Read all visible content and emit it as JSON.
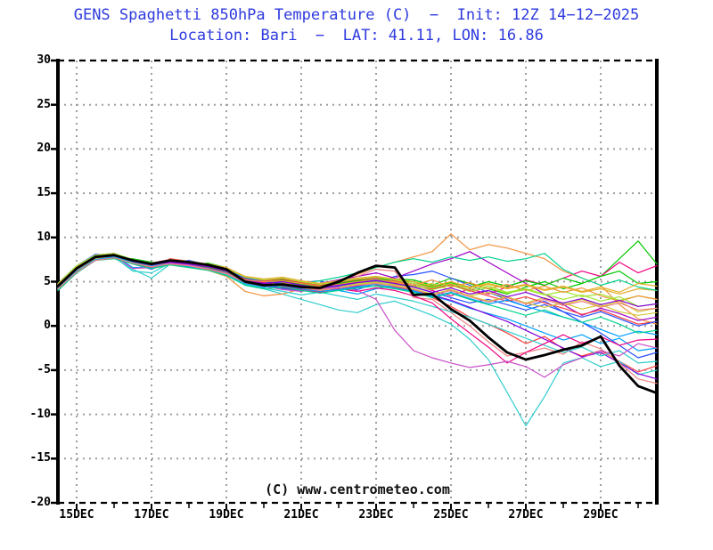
{
  "title": {
    "line1": "GENS Spaghetti 850hPa Temperature (C)  −  Init: 12Z 14−12−2025",
    "line2": "Location: Bari  −  LAT: 41.11, LON: 16.86",
    "color": "#2e3ade"
  },
  "watermark": "(C) www.centrometeo.com",
  "chart_data": {
    "type": "line",
    "subtype": "ensemble-spaghetti",
    "title": "GENS Spaghetti 850hPa Temperature (C)",
    "init": "12Z 14-12-2025",
    "location": "Bari",
    "lat": "41.11",
    "lon": "16.86",
    "xlabel": "",
    "ylabel": "",
    "ylim": [
      -20,
      30
    ],
    "ytick_step": 5,
    "x_start_day": 14.5,
    "x_end_day": 30.5,
    "x_step_days": 0.5,
    "grid": "dotted-gray",
    "grid_color": "#9e9e9e",
    "axis_color": "#000000",
    "yticks": [
      {
        "v": 30,
        "label": "30"
      },
      {
        "v": 25,
        "label": "25"
      },
      {
        "v": 20,
        "label": "20"
      },
      {
        "v": 15,
        "label": "15"
      },
      {
        "v": 10,
        "label": "10"
      },
      {
        "v": 5,
        "label": "5"
      },
      {
        "v": 0,
        "label": "0"
      },
      {
        "v": -5,
        "label": "-5"
      },
      {
        "v": -10,
        "label": "-10"
      },
      {
        "v": -15,
        "label": "-15"
      },
      {
        "v": -20,
        "label": "-20"
      }
    ],
    "xticks_major": [
      {
        "day": 15,
        "label": "15DEC"
      },
      {
        "day": 17,
        "label": "17DEC"
      },
      {
        "day": 19,
        "label": "19DEC"
      },
      {
        "day": 21,
        "label": "21DEC"
      },
      {
        "day": 23,
        "label": "23DEC"
      },
      {
        "day": 25,
        "label": "25DEC"
      },
      {
        "day": 27,
        "label": "27DEC"
      },
      {
        "day": 29,
        "label": "29DEC"
      }
    ],
    "xticks_minor_days": [
      16,
      18,
      20,
      22,
      24,
      26,
      28,
      30
    ],
    "series": [
      {
        "name": "p01",
        "color": "#fa3c3c",
        "width": 1.2,
        "values": [
          4.6,
          6.6,
          8.0,
          8.2,
          7.1,
          6.6,
          7.6,
          7.3,
          6.5,
          6.0,
          4.8,
          4.4,
          4.9,
          4.2,
          4.0,
          4.9,
          5.3,
          4.6,
          4.4,
          4.0,
          3.2,
          2.2,
          1.0,
          0.2,
          -0.8,
          -2.0,
          -1.2,
          -2.6,
          -3.4,
          -2.8,
          -4.0,
          -5.2,
          -4.5
        ]
      },
      {
        "name": "p02",
        "color": "#00c800",
        "width": 1.2,
        "values": [
          4.1,
          6.2,
          7.5,
          7.7,
          7.6,
          7.2,
          7.0,
          6.8,
          7.1,
          6.6,
          5.4,
          5.0,
          5.2,
          4.8,
          4.6,
          4.3,
          4.7,
          5.2,
          5.3,
          5.2,
          4.6,
          5.4,
          4.8,
          4.2,
          3.6,
          4.4,
          5.0,
          4.2,
          4.8,
          5.6,
          7.6,
          9.6,
          7.0
        ]
      },
      {
        "name": "p03",
        "color": "#2850ff",
        "width": 1.2,
        "values": [
          4.8,
          6.8,
          8.1,
          8.0,
          7.0,
          6.4,
          7.2,
          7.4,
          6.9,
          6.5,
          5.5,
          5.2,
          4.6,
          4.9,
          5.1,
          4.4,
          4.1,
          4.8,
          5.6,
          5.8,
          6.2,
          5.4,
          4.6,
          3.8,
          3.0,
          2.2,
          2.8,
          1.6,
          0.4,
          -0.8,
          -2.2,
          -3.6,
          -3.0
        ]
      },
      {
        "name": "p04",
        "color": "#30cdcd",
        "width": 1.2,
        "values": [
          4.4,
          6.3,
          7.6,
          7.8,
          6.2,
          6.0,
          7.1,
          6.9,
          6.6,
          5.9,
          4.6,
          4.2,
          3.6,
          3.0,
          2.4,
          1.8,
          1.5,
          2.4,
          2.8,
          2.0,
          1.2,
          0.2,
          -1.5,
          -3.8,
          -7.5,
          -11.3,
          -8.0,
          -4.2,
          -3.6,
          -4.6,
          -4.0,
          -5.5,
          -5.0
        ]
      },
      {
        "name": "p05",
        "color": "#f00082",
        "width": 1.2,
        "values": [
          4.0,
          6.0,
          7.4,
          7.8,
          7.4,
          7.1,
          7.5,
          7.0,
          6.4,
          6.1,
          5.2,
          4.9,
          5.1,
          4.7,
          4.4,
          4.8,
          5.1,
          5.4,
          5.0,
          4.6,
          4.0,
          3.4,
          4.2,
          3.6,
          4.4,
          5.2,
          4.6,
          5.4,
          6.2,
          5.6,
          7.2,
          6.0,
          6.8
        ]
      },
      {
        "name": "p06",
        "color": "#d2c832",
        "width": 1.2,
        "values": [
          4.5,
          6.5,
          7.8,
          8.0,
          7.2,
          6.8,
          7.2,
          7.0,
          6.7,
          6.2,
          5.0,
          4.8,
          4.4,
          4.6,
          4.2,
          4.5,
          4.8,
          5.1,
          4.7,
          4.4,
          4.8,
          4.0,
          3.4,
          3.8,
          3.2,
          2.6,
          3.2,
          2.4,
          3.0,
          2.2,
          2.8,
          1.6,
          2.0
        ]
      },
      {
        "name": "p07",
        "color": "#f0913c",
        "width": 1.2,
        "values": [
          4.2,
          6.1,
          7.5,
          7.7,
          7.0,
          6.5,
          6.9,
          6.6,
          6.3,
          5.6,
          3.9,
          3.4,
          3.6,
          4.2,
          4.8,
          5.2,
          5.8,
          6.6,
          7.2,
          7.8,
          8.4,
          10.4,
          8.6,
          9.2,
          8.8,
          8.2,
          7.6,
          6.2,
          5.4,
          4.6,
          2.4,
          0.8,
          0.2
        ]
      },
      {
        "name": "p08",
        "color": "#a000c8",
        "width": 1.2,
        "values": [
          4.7,
          6.7,
          7.9,
          8.1,
          7.3,
          6.9,
          7.4,
          7.2,
          6.6,
          6.4,
          5.3,
          5.0,
          4.7,
          4.4,
          4.8,
          5.2,
          5.6,
          6.0,
          5.4,
          6.2,
          7.0,
          7.6,
          8.4,
          7.2,
          6.0,
          4.8,
          3.6,
          2.4,
          1.2,
          2.0,
          1.4,
          0.6,
          1.0
        ]
      },
      {
        "name": "p09",
        "color": "#a0e632",
        "width": 1.2,
        "values": [
          4.3,
          6.4,
          7.7,
          7.9,
          7.5,
          7.0,
          7.2,
          7.1,
          6.9,
          6.3,
          5.2,
          4.9,
          5.0,
          4.6,
          4.3,
          4.4,
          4.7,
          5.0,
          4.8,
          4.5,
          4.1,
          4.6,
          3.9,
          4.3,
          3.7,
          4.1,
          3.5,
          3.9,
          3.3,
          3.6,
          2.9,
          3.4,
          3.0
        ]
      },
      {
        "name": "p10",
        "color": "#00a0ff",
        "width": 1.2,
        "values": [
          4.6,
          6.5,
          7.8,
          8.0,
          6.6,
          6.6,
          7.0,
          6.8,
          6.5,
          6.0,
          4.9,
          4.6,
          4.2,
          3.9,
          4.3,
          4.0,
          3.6,
          4.2,
          4.6,
          4.0,
          3.4,
          2.8,
          2.0,
          1.4,
          0.8,
          0.0,
          -0.8,
          -1.6,
          -1.0,
          -2.0,
          -1.4,
          -2.8,
          -2.5
        ]
      },
      {
        "name": "p11",
        "color": "#e6af2d",
        "width": 1.2,
        "values": [
          4.4,
          6.4,
          7.6,
          7.8,
          7.3,
          6.8,
          7.3,
          7.0,
          6.8,
          6.2,
          5.1,
          4.8,
          4.9,
          4.5,
          4.2,
          4.6,
          5.0,
          5.2,
          5.0,
          4.8,
          4.4,
          4.9,
          4.3,
          4.7,
          4.2,
          4.6,
          4.0,
          4.4,
          3.8,
          4.2,
          3.6,
          4.2,
          4.0
        ]
      },
      {
        "name": "p12",
        "color": "#00d28c",
        "width": 1.2,
        "values": [
          4.2,
          6.2,
          7.6,
          7.8,
          7.4,
          7.1,
          7.1,
          6.9,
          6.7,
          6.1,
          5.0,
          4.7,
          4.5,
          4.8,
          5.1,
          5.5,
          6.0,
          6.6,
          7.2,
          7.6,
          7.2,
          7.8,
          7.4,
          7.8,
          7.3,
          7.6,
          8.2,
          6.4,
          5.4,
          4.6,
          5.2,
          4.4,
          4.0
        ]
      },
      {
        "name": "p13",
        "color": "#8200dc",
        "width": 1.2,
        "values": [
          4.5,
          6.6,
          7.9,
          8.1,
          7.2,
          6.7,
          7.2,
          7.0,
          6.6,
          6.1,
          5.0,
          4.7,
          4.3,
          4.0,
          4.4,
          4.1,
          4.5,
          4.9,
          4.5,
          4.1,
          3.5,
          2.9,
          2.1,
          1.3,
          0.5,
          -0.5,
          -1.5,
          -2.5,
          -3.5,
          -3.0,
          -4.2,
          -5.4,
          -6.0
        ]
      },
      {
        "name": "p14",
        "color": "#f08080",
        "width": 1.2,
        "values": [
          4.3,
          6.3,
          7.7,
          7.9,
          7.3,
          6.8,
          7.4,
          7.1,
          6.7,
          6.2,
          5.1,
          4.5,
          4.6,
          4.3,
          4.2,
          4.8,
          5.6,
          6.4,
          6.2,
          3.2,
          3.0,
          1.5,
          0.0,
          -1.8,
          -3.4,
          -3.0,
          -2.5,
          -3.2,
          -1.8,
          -2.6,
          -4.2,
          -6.0,
          -6.5
        ]
      },
      {
        "name": "p15",
        "color": "#fa3c3c",
        "width": 1.2,
        "values": [
          4.7,
          6.7,
          8.0,
          8.2,
          7.4,
          7.0,
          7.5,
          7.2,
          6.9,
          6.4,
          5.3,
          5.1,
          5.3,
          4.9,
          4.6,
          4.9,
          5.2,
          5.5,
          5.1,
          4.8,
          4.2,
          4.7,
          4.0,
          3.4,
          2.8,
          3.3,
          2.6,
          2.0,
          1.3,
          1.8,
          1.0,
          0.2,
          0.5
        ]
      },
      {
        "name": "p16",
        "color": "#00c800",
        "width": 1.2,
        "values": [
          4.4,
          6.5,
          7.8,
          8.0,
          7.2,
          6.7,
          7.1,
          6.9,
          6.6,
          6.1,
          5.2,
          4.8,
          5.0,
          4.7,
          4.5,
          4.8,
          5.1,
          5.3,
          5.2,
          5.0,
          4.4,
          4.9,
          4.4,
          5.0,
          4.5,
          5.1,
          4.6,
          5.4,
          4.8,
          5.6,
          6.2,
          4.8,
          5.0
        ]
      },
      {
        "name": "p17",
        "color": "#2850ff",
        "width": 1.2,
        "values": [
          4.5,
          6.4,
          7.7,
          8.0,
          7.5,
          7.1,
          7.3,
          7.0,
          6.8,
          6.3,
          5.4,
          5.0,
          4.8,
          4.4,
          4.1,
          4.5,
          4.9,
          5.2,
          4.8,
          4.4,
          3.8,
          3.2,
          2.6,
          3.0,
          2.4,
          1.8,
          2.4,
          1.6,
          1.0,
          1.6,
          0.8,
          0.0,
          0.5
        ]
      },
      {
        "name": "p18",
        "color": "#30cdcd",
        "width": 1.2,
        "values": [
          4.1,
          6.1,
          7.5,
          7.7,
          6.4,
          5.4,
          7.0,
          6.7,
          6.4,
          5.8,
          4.7,
          4.3,
          3.9,
          3.5,
          3.8,
          3.4,
          3.0,
          3.6,
          3.2,
          2.8,
          2.2,
          1.6,
          1.0,
          0.2,
          -0.6,
          -1.4,
          -2.2,
          -3.0,
          -2.4,
          -3.4,
          -2.8,
          -4.2,
          -4.0
        ]
      },
      {
        "name": "p19",
        "color": "#f00082",
        "width": 1.2,
        "values": [
          4.6,
          6.6,
          7.9,
          8.1,
          7.3,
          6.8,
          7.3,
          7.1,
          6.7,
          6.2,
          5.2,
          4.9,
          4.5,
          4.1,
          3.8,
          4.2,
          3.9,
          4.3,
          4.0,
          3.4,
          2.6,
          0.8,
          -0.8,
          -2.4,
          -4.2,
          -3.0,
          -2.0,
          -1.0,
          -2.0,
          -1.2,
          -2.2,
          -1.6,
          -1.5
        ]
      },
      {
        "name": "p20",
        "color": "#d2c832",
        "width": 1.2,
        "values": [
          4.2,
          6.3,
          7.6,
          7.8,
          7.2,
          6.9,
          7.1,
          6.8,
          6.5,
          6.0,
          5.0,
          4.6,
          4.8,
          4.4,
          4.1,
          4.4,
          4.7,
          4.9,
          4.6,
          4.2,
          3.6,
          4.1,
          3.4,
          2.8,
          3.3,
          2.6,
          2.1,
          2.6,
          1.9,
          2.4,
          1.6,
          1.2,
          1.5
        ]
      },
      {
        "name": "p21",
        "color": "#f0913c",
        "width": 1.2,
        "values": [
          4.6,
          6.7,
          7.9,
          8.1,
          7.4,
          7.0,
          7.4,
          7.1,
          6.8,
          6.3,
          5.2,
          5.0,
          5.1,
          4.8,
          4.5,
          4.7,
          5.0,
          5.3,
          4.9,
          4.6,
          5.2,
          4.4,
          4.9,
          4.2,
          4.7,
          4.0,
          4.5,
          3.8,
          4.3,
          3.4,
          2.8,
          3.4,
          3.0
        ]
      },
      {
        "name": "p22",
        "color": "#c84fc8",
        "width": 1.2,
        "values": [
          4.4,
          6.4,
          7.7,
          7.9,
          6.5,
          6.6,
          7.1,
          6.9,
          6.5,
          6.0,
          4.9,
          4.5,
          4.1,
          3.9,
          4.2,
          4.4,
          4.0,
          3.0,
          -0.5,
          -2.8,
          -3.6,
          -4.2,
          -4.7,
          -4.4,
          -4.0,
          -4.6,
          -5.8,
          -4.4,
          -3.6,
          -2.8,
          -3.4,
          -2.0,
          -2.5
        ]
      },
      {
        "name": "p23",
        "color": "#a0e632",
        "width": 1.2,
        "values": [
          4.8,
          6.8,
          8.0,
          8.2,
          7.5,
          7.1,
          7.4,
          7.2,
          6.9,
          6.5,
          5.5,
          5.2,
          5.4,
          5.0,
          4.7,
          5.0,
          5.3,
          5.5,
          5.2,
          4.8,
          4.3,
          4.8,
          4.1,
          4.5,
          3.8,
          4.2,
          3.6,
          3.0,
          3.5,
          2.8,
          3.3,
          2.2,
          2.5
        ]
      },
      {
        "name": "p24",
        "color": "#00a0ff",
        "width": 1.2,
        "values": [
          4.3,
          6.2,
          7.5,
          7.8,
          7.2,
          6.8,
          7.0,
          6.7,
          6.4,
          5.9,
          4.8,
          4.4,
          4.6,
          4.2,
          3.9,
          4.1,
          4.4,
          4.7,
          4.3,
          3.9,
          3.3,
          3.8,
          3.1,
          2.5,
          2.9,
          2.2,
          1.6,
          1.0,
          0.4,
          -0.4,
          -1.2,
          -0.6,
          -1.0
        ]
      },
      {
        "name": "p25",
        "color": "#e6af2d",
        "width": 1.2,
        "values": [
          4.7,
          6.6,
          7.8,
          8.1,
          7.4,
          7.0,
          7.5,
          7.3,
          7.0,
          6.6,
          5.6,
          5.3,
          5.5,
          5.1,
          4.8,
          5.1,
          5.4,
          5.6,
          5.3,
          5.0,
          4.5,
          5.0,
          4.4,
          4.8,
          4.3,
          4.7,
          4.1,
          4.5,
          3.9,
          4.4,
          3.8,
          4.8,
          4.5
        ]
      },
      {
        "name": "p26",
        "color": "#00d28c",
        "width": 1.2,
        "values": [
          4.0,
          6.0,
          7.4,
          7.6,
          7.0,
          6.5,
          6.9,
          6.6,
          6.3,
          5.7,
          4.6,
          4.2,
          4.4,
          4.0,
          3.7,
          4.0,
          4.3,
          4.5,
          4.2,
          3.8,
          3.2,
          3.7,
          3.0,
          2.4,
          1.8,
          1.2,
          1.8,
          1.0,
          0.4,
          1.0,
          0.2,
          -0.8,
          -0.5
        ]
      },
      {
        "name": "p27",
        "color": "#8200dc",
        "width": 1.2,
        "values": [
          4.6,
          6.5,
          7.8,
          8.0,
          7.3,
          6.9,
          7.2,
          7.0,
          6.7,
          6.2,
          5.1,
          4.8,
          5.0,
          4.6,
          4.3,
          4.6,
          4.9,
          5.1,
          4.8,
          4.4,
          3.8,
          4.3,
          3.6,
          4.0,
          3.3,
          3.8,
          3.1,
          2.6,
          3.1,
          2.4,
          2.9,
          2.2,
          2.5
        ]
      },
      {
        "name": "p28",
        "color": "#f08080",
        "width": 1.2,
        "values": [
          4.2,
          6.1,
          7.4,
          7.7,
          7.1,
          6.7,
          7.0,
          6.8,
          6.4,
          5.9,
          4.9,
          4.5,
          4.7,
          4.3,
          4.0,
          4.3,
          4.6,
          4.8,
          4.5,
          4.1,
          3.5,
          4.0,
          3.3,
          2.7,
          3.2,
          2.5,
          3.0,
          2.3,
          2.8,
          2.1,
          2.6,
          1.8,
          2.0
        ]
      },
      {
        "name": "control",
        "color": "#000000",
        "width": 2.8,
        "values": [
          4.5,
          6.5,
          7.8,
          8.0,
          7.4,
          7.0,
          7.4,
          7.2,
          6.9,
          6.4,
          5.0,
          4.6,
          4.7,
          4.4,
          4.3,
          5.0,
          6.0,
          6.8,
          6.6,
          3.5,
          3.6,
          1.9,
          0.6,
          -1.3,
          -3.0,
          -3.8,
          -3.3,
          -2.7,
          -2.2,
          -1.2,
          -4.5,
          -6.8,
          -7.6
        ]
      }
    ]
  }
}
